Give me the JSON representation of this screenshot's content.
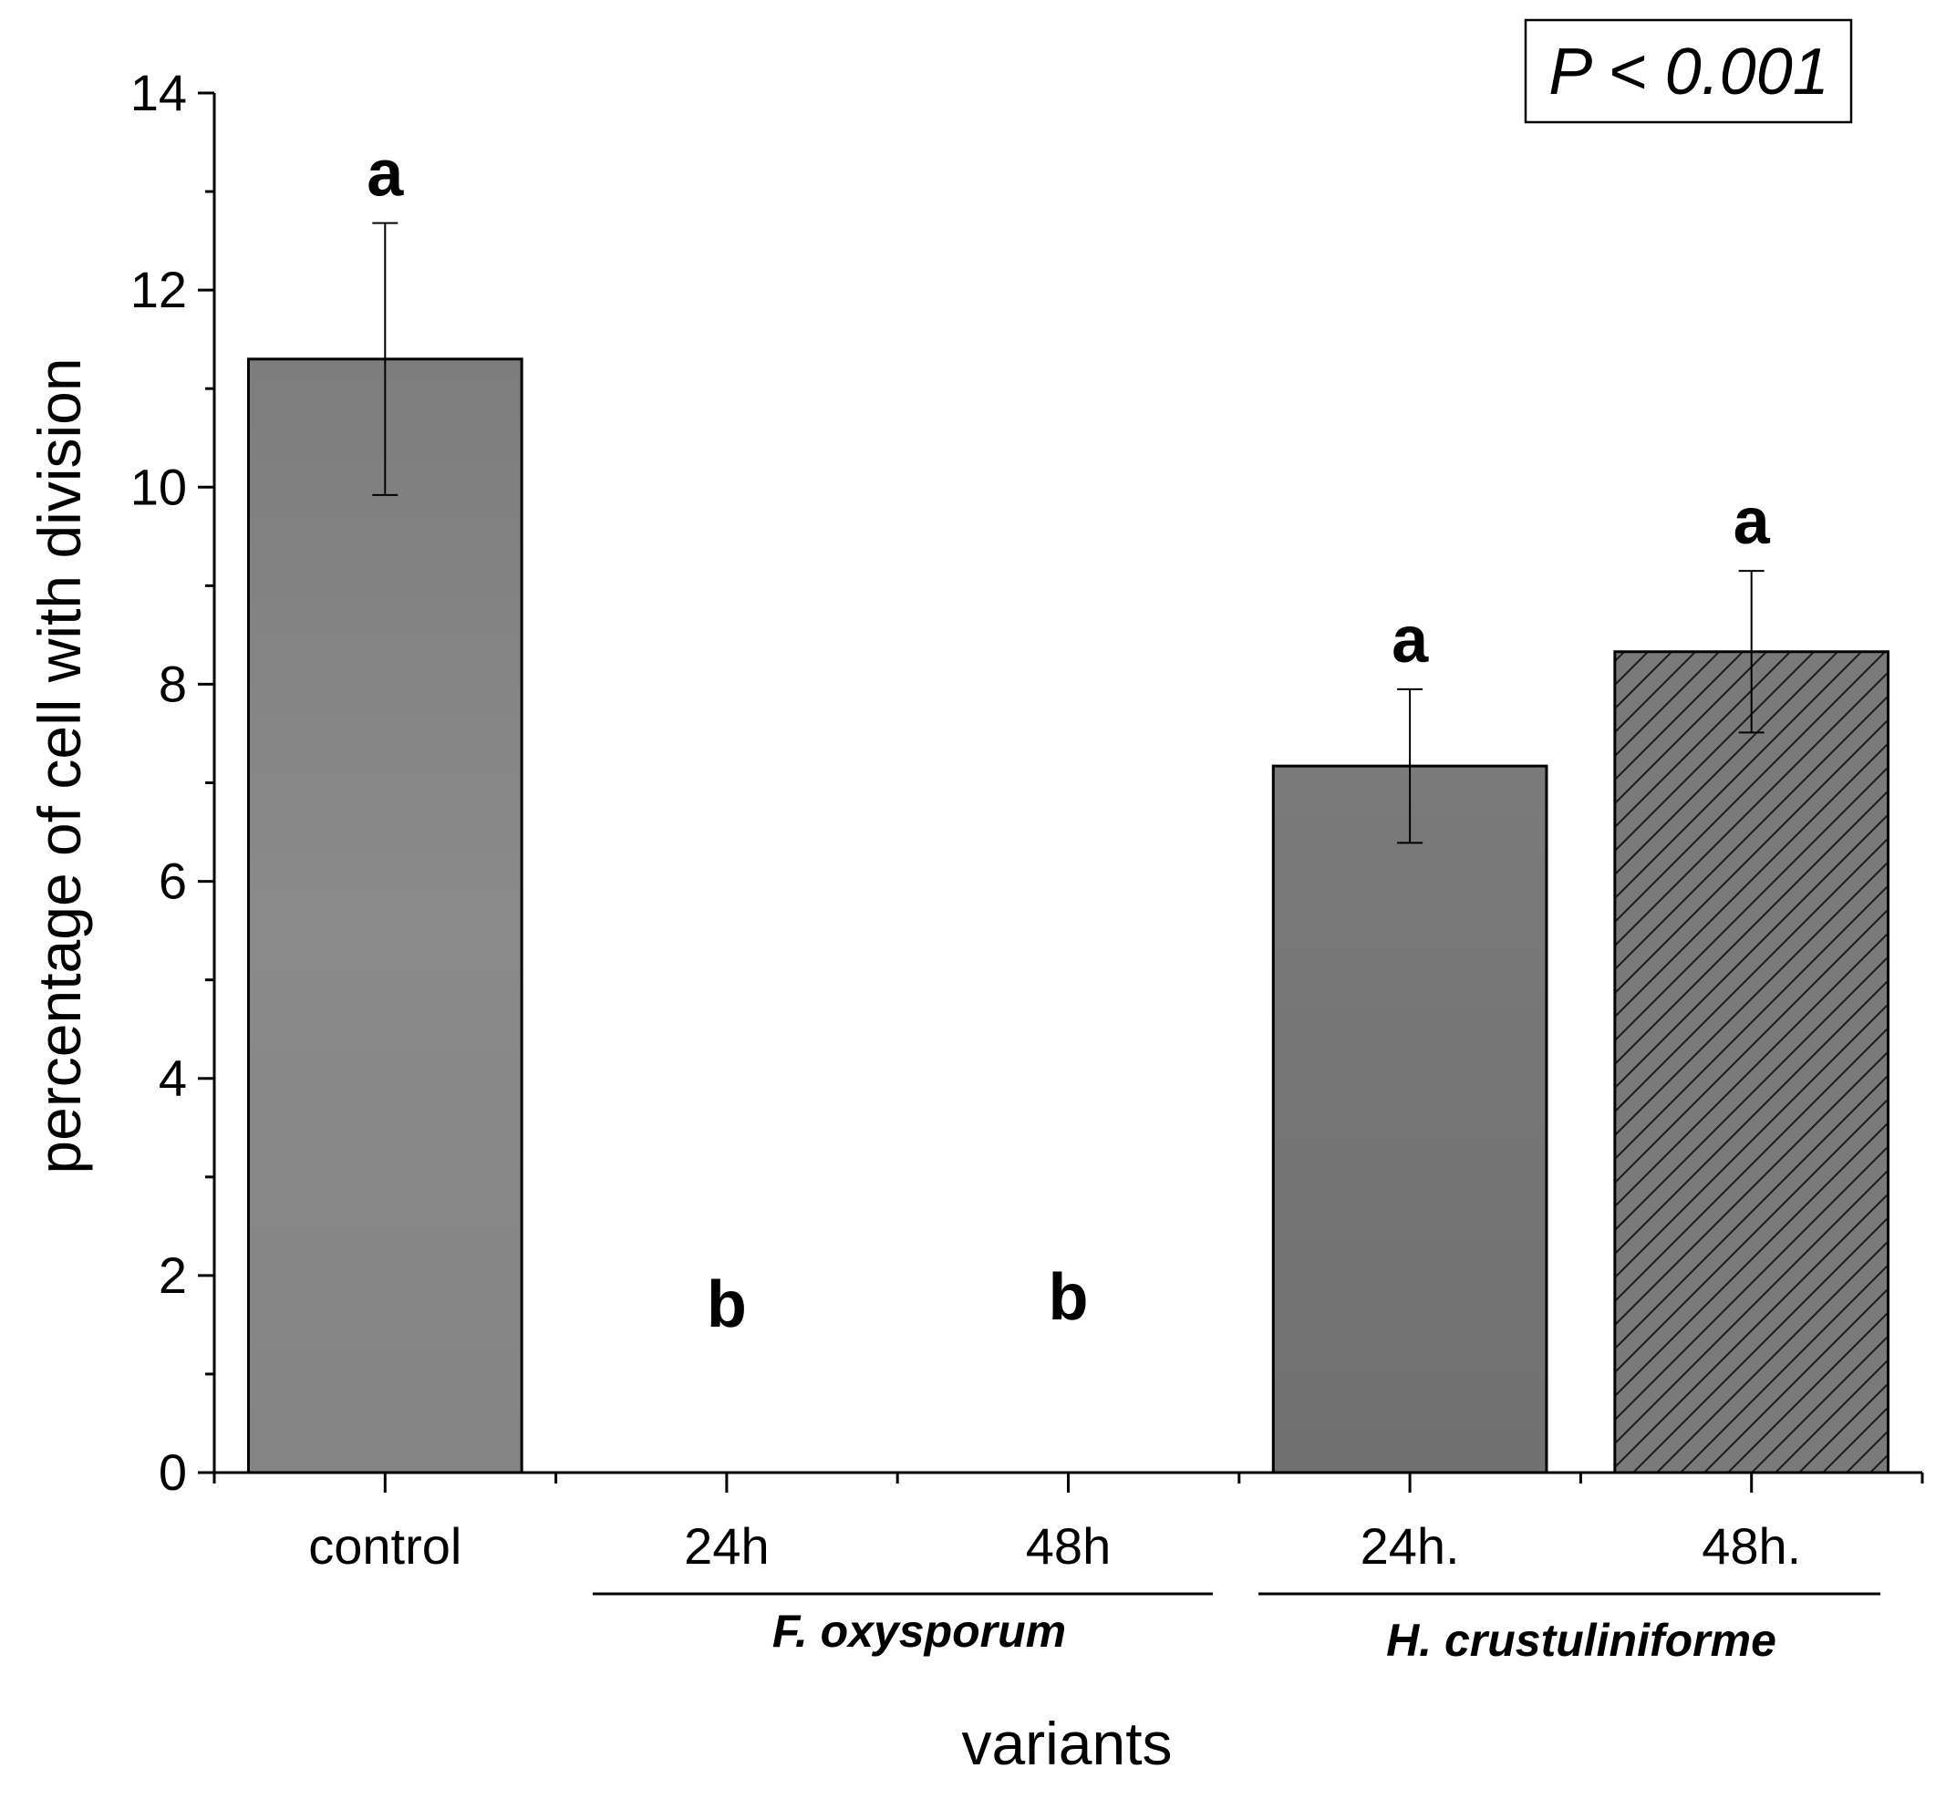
{
  "chart_data": {
    "type": "bar",
    "categories": [
      "control",
      "24h",
      "48h",
      "24h.",
      "48h."
    ],
    "values": [
      11.3,
      0,
      0,
      7.17,
      8.33
    ],
    "errors": [
      1.38,
      0,
      0,
      0.78,
      0.82
    ],
    "significance_letters": [
      "a",
      "b",
      "b",
      "a",
      "a"
    ],
    "bar_patterns": [
      "solid",
      "none",
      "none",
      "solid",
      "hatched"
    ],
    "groups": [
      {
        "label": "F. oxysporum",
        "categories": [
          "24h",
          "48h"
        ]
      },
      {
        "label": "H. crustuliniforme",
        "categories": [
          "24h.",
          "48h."
        ]
      }
    ],
    "annotation": "P < 0.001",
    "xlabel": "variants",
    "ylabel": "percentage of cell with division",
    "ylim": [
      0,
      14
    ],
    "yticks": [
      0,
      2,
      4,
      6,
      8,
      10,
      12,
      14
    ],
    "colors": {
      "bar_light": "#8a8a8a",
      "bar_dark": "#747474",
      "axis": "#000000"
    }
  }
}
